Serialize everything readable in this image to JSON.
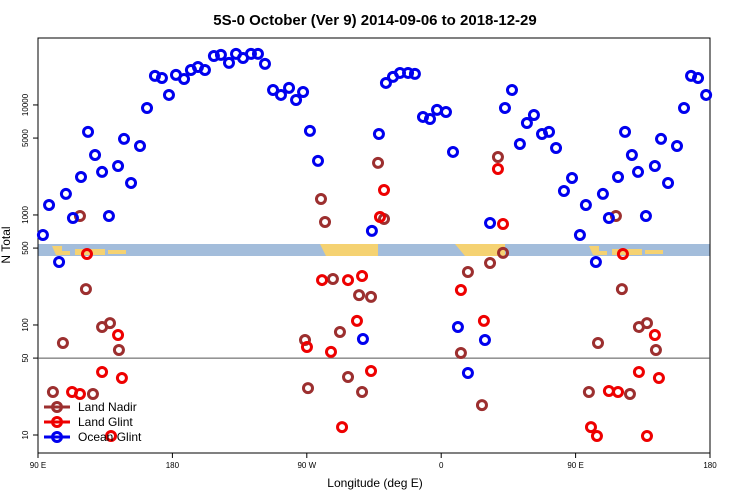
{
  "chart_data": {
    "type": "scatter",
    "title": "5S-0 October (Ver 9)   2014-09-06 to 2018-12-29",
    "x_label": "Longitude (deg E)",
    "y_label": "N Total",
    "xlim": [
      -270,
      180
    ],
    "xticks": [
      {
        "value": -270,
        "label": "90 E"
      },
      {
        "value": -180,
        "label": "180"
      },
      {
        "value": -90,
        "label": "90 W"
      },
      0,
      {
        "value": 90,
        "label": "90 E"
      },
      180
    ],
    "ylim": [
      6.86,
      40600
    ],
    "yticks": [
      10,
      50,
      100,
      500,
      1000,
      5000,
      10000
    ],
    "y_log": true,
    "reference_line": 50,
    "legend_loc": "bottom-left",
    "series": [
      {
        "name": "Land Nadir",
        "color": "#9c2f2f",
        "x": [
          -260.0,
          -253.3,
          -241.9,
          -237.9,
          -233.2,
          -227.1,
          -221.8,
          -215.8,
          -91.2,
          -89.2,
          -80.5,
          -77.8,
          -72.5,
          -67.8,
          -62.4,
          -55.0,
          -53.0,
          -47.0,
          -42.3,
          -38.3,
          13.2,
          17.9,
          27.3,
          32.7,
          38.0,
          41.4,
          98.9,
          105.0,
          117.0,
          121.0,
          126.4,
          132.4,
          137.8,
          143.8
        ],
        "values": [
          24.6,
          68.5,
          979,
          212,
          23.6,
          95.9,
          104,
          59.3,
          73.1,
          26.7,
          1397,
          863,
          262,
          86.3,
          33.7,
          187,
          24.6,
          180,
          2972,
          920,
          55.6,
          303,
          18.7,
          366,
          3365,
          452,
          24.6,
          68.5,
          979,
          212,
          23.6,
          95.9,
          104,
          59.3
        ]
      },
      {
        "name": "Land Glint",
        "color": "#ee0000",
        "x": [
          -247.2,
          -241.9,
          -237.2,
          -227.1,
          -221.1,
          -216.4,
          -213.8,
          -89.9,
          -79.8,
          -73.8,
          -66.4,
          -62.4,
          -56.4,
          -53.0,
          -47.0,
          -41.0,
          -38.3,
          13.2,
          28.6,
          38.0,
          41.4,
          100.3,
          104.3,
          112.3,
          118.4,
          121.7,
          132.4,
          137.8,
          143.1,
          145.8
        ],
        "values": [
          24.6,
          23.6,
          442,
          37.4,
          9.8,
          81.1,
          33.0,
          63.1,
          256,
          56.9,
          11.8,
          256,
          109,
          279,
          38.2,
          959,
          1687,
          208,
          109,
          2618,
          828,
          11.8,
          9.8,
          25.1,
          24.6,
          442,
          37.4,
          9.8,
          81.1,
          33.0
        ]
      },
      {
        "name": "Ocean Glint",
        "color": "#0000ee",
        "x": [
          -266.7,
          -262.6,
          -255.9,
          -251.3,
          -246.6,
          -241.2,
          -236.5,
          -231.8,
          -227.1,
          -222.5,
          -216.4,
          -212.4,
          -207.7,
          -201.7,
          -197.0,
          -191.7,
          -187.0,
          -182.3,
          -177.6,
          -172.2,
          -167.6,
          -162.9,
          -158.2,
          -152.2,
          -147.5,
          -142.1,
          -137.4,
          -132.7,
          -127.4,
          -122.7,
          -118.0,
          -112.6,
          -107.3,
          -101.9,
          -97.2,
          -92.5,
          -87.9,
          -82.5,
          -52.4,
          -46.4,
          -41.7,
          -37.0,
          -32.3,
          -27.6,
          -22.2,
          -17.6,
          -12.2,
          -7.5,
          -2.8,
          3.2,
          7.9,
          11.2,
          17.9,
          29.3,
          32.7,
          42.7,
          47.4,
          52.7,
          57.4,
          62.1,
          67.5,
          72.2,
          76.9,
          82.2,
          87.6,
          92.9,
          96.9,
          103.6,
          108.3,
          112.3,
          118.4,
          123.1,
          127.7,
          131.8,
          137.1,
          143.1,
          147.2,
          151.9,
          157.9,
          162.6,
          167.3,
          172.0,
          177.4
        ],
        "values": [
          658,
          1233,
          374,
          1553,
          939,
          2215,
          5686,
          3510,
          2461,
          979,
          2788,
          4910,
          1953,
          4236,
          9390,
          18360,
          17580,
          12330,
          18750,
          17220,
          20800,
          22130,
          20800,
          27860,
          28500,
          24100,
          29100,
          26730,
          29100,
          29100,
          23600,
          13680,
          12330,
          14290,
          11100,
          13120,
          5810,
          3100,
          74.6,
          716,
          5450,
          15850,
          17990,
          19540,
          19540,
          19140,
          7780,
          7460,
          9020,
          8630,
          3740,
          95.9,
          36.6,
          73.1,
          845,
          9390,
          13680,
          4415,
          6850,
          8110,
          5450,
          5686,
          4064,
          1652,
          2170,
          658,
          1233,
          374,
          1553,
          939,
          2215,
          5686,
          3510,
          2461,
          979,
          2788,
          4910,
          1953,
          4236,
          9390,
          18360,
          17580,
          12330
        ]
      }
    ]
  }
}
